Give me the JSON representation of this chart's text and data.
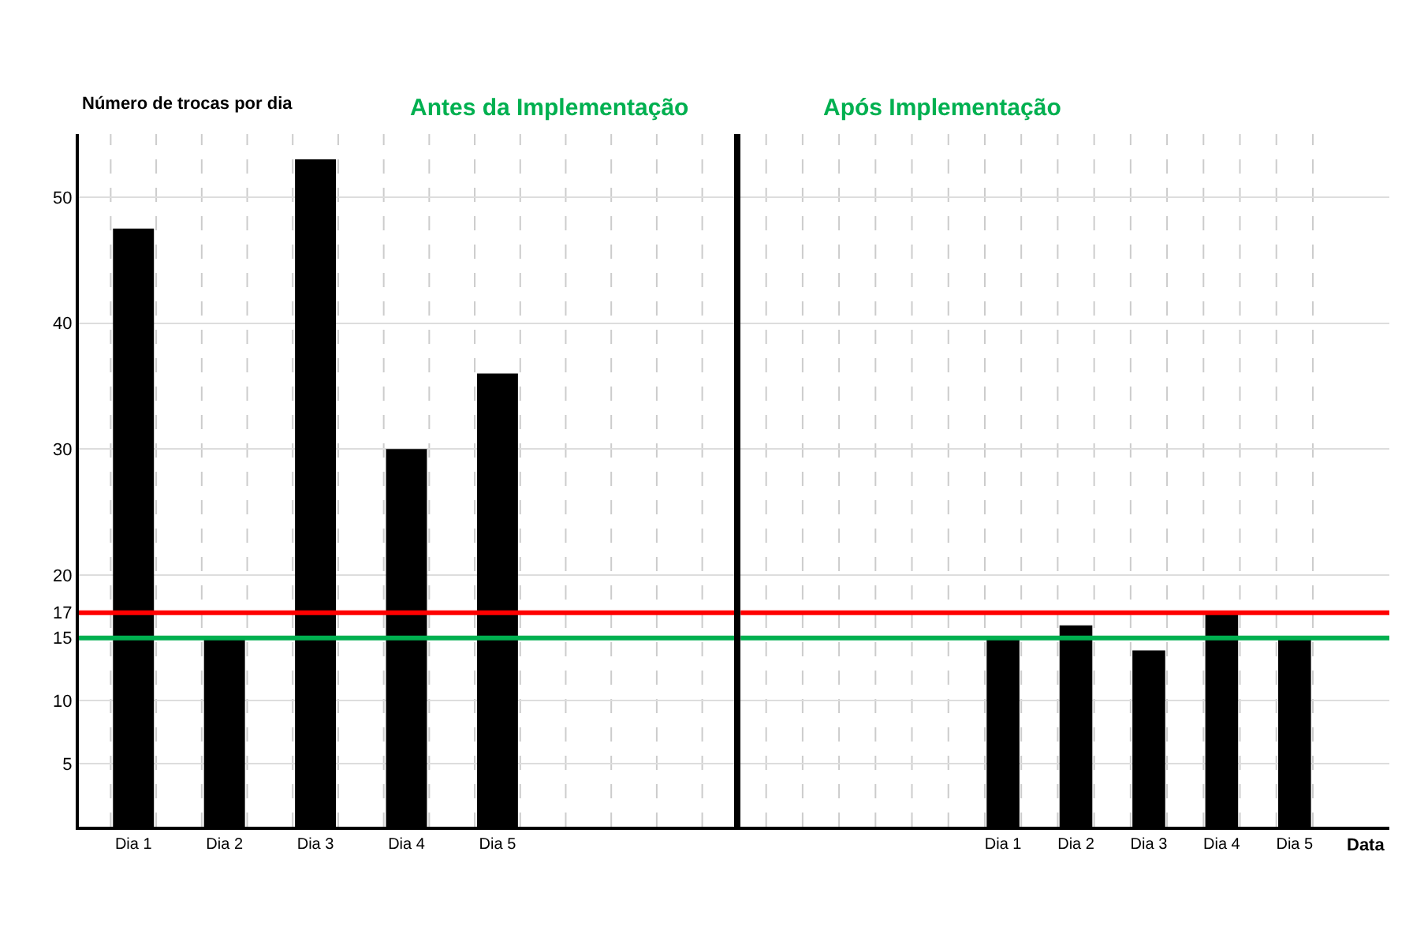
{
  "chart_data": [
    {
      "type": "bar",
      "title": "Antes da Implementação",
      "ylabel": "Número de trocas por dia",
      "categories": [
        "Dia 1",
        "Dia 2",
        "Dia 3",
        "Dia 4",
        "Dia 5",
        null,
        null
      ],
      "series": [
        {
          "color": "#000000",
          "values": [
            47.5,
            15,
            53,
            30,
            36,
            null,
            null
          ]
        }
      ],
      "ylim": [
        0,
        55
      ],
      "yticks": [
        5,
        10,
        15,
        17,
        20,
        30,
        40,
        50
      ],
      "grid": true,
      "ref_lines": [
        {
          "axis": "y",
          "value": 17,
          "color": "#ff0000"
        },
        {
          "axis": "y",
          "value": 15,
          "color": "#00b050"
        }
      ]
    },
    {
      "type": "bar",
      "title": "Após Implementação",
      "xlabel": "Data",
      "categories": [
        null,
        null,
        null,
        "Dia 1",
        "Dia 2",
        "Dia 3",
        "Dia 4",
        "Dia 5"
      ],
      "series": [
        {
          "color": "#000000",
          "values": [
            null,
            null,
            null,
            15,
            16,
            14,
            17,
            15
          ]
        }
      ],
      "ylim": [
        0,
        55
      ],
      "yticks": [
        5,
        10,
        15,
        17,
        20,
        30,
        40,
        50
      ],
      "grid": true,
      "tick_labels": "x",
      "ref_lines": [
        {
          "axis": "y",
          "value": 17,
          "color": "#ff0000"
        },
        {
          "axis": "y",
          "value": 15,
          "color": "#00b050"
        }
      ]
    }
  ]
}
